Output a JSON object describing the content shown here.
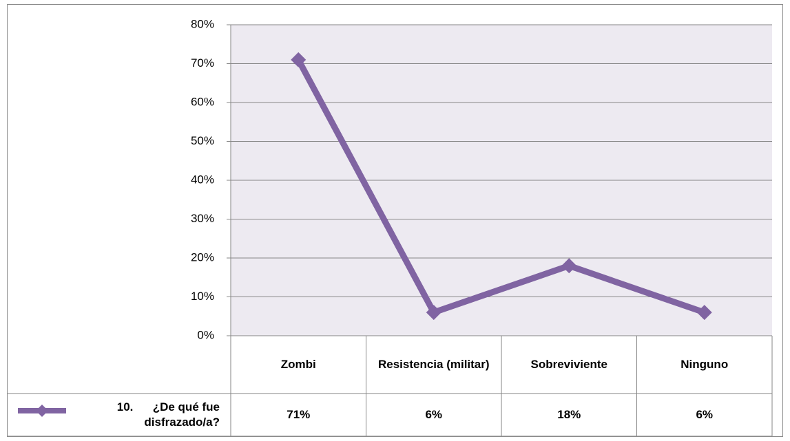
{
  "chart_data": {
    "type": "line",
    "categories": [
      "Zombi",
      "Resistencia (militar)",
      "Sobreviviente",
      "Ninguno"
    ],
    "series": [
      {
        "name": "10.      ¿De qué fue disfrazado/a?",
        "color": "#8064a2",
        "values": [
          71,
          6,
          18,
          6
        ],
        "value_labels": [
          "71%",
          "6%",
          "18%",
          "6%"
        ]
      }
    ],
    "ylim": [
      0,
      80
    ],
    "yticks": [
      {
        "value": 0,
        "label": "0%"
      },
      {
        "value": 10,
        "label": "10%"
      },
      {
        "value": 20,
        "label": "20%"
      },
      {
        "value": 30,
        "label": "30%"
      },
      {
        "value": 40,
        "label": "40%"
      },
      {
        "value": 50,
        "label": "50%"
      },
      {
        "value": 60,
        "label": "60%"
      },
      {
        "value": 70,
        "label": "70%"
      },
      {
        "value": 80,
        "label": "80%"
      }
    ],
    "grid": true,
    "data_table": true
  }
}
